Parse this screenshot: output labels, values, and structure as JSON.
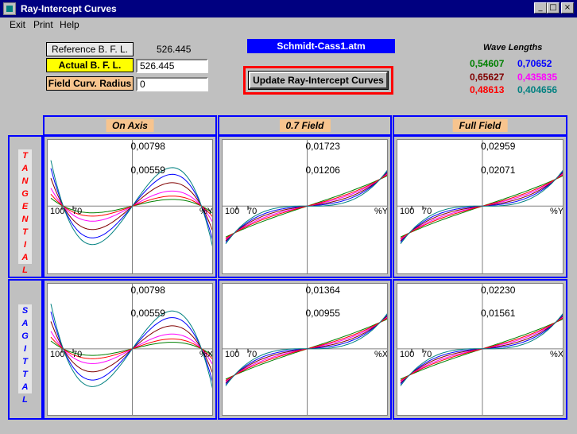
{
  "window": {
    "title": "Ray-Intercept Curves"
  },
  "menu": [
    "Exit",
    "Print",
    "Help"
  ],
  "controls": {
    "reference_bfl_label": "Reference  B. F. L.",
    "reference_bfl_value": "526.445",
    "actual_bfl_label": "Actual  B. F. L.",
    "actual_bfl_value": "526.445",
    "field_curv_label": "Field Curv. Radius",
    "field_curv_value": "0",
    "file_name": "Schmidt-Cass1.atm",
    "update_button": "Update  Ray-Intercept Curves"
  },
  "wavelengths": {
    "title": "Wave Lengths",
    "items": [
      {
        "value": "0,54607",
        "color": "#008000"
      },
      {
        "value": "0,70652",
        "color": "#0000ff"
      },
      {
        "value": "0,65627",
        "color": "#800000"
      },
      {
        "value": "0,435835",
        "color": "#ff00ff"
      },
      {
        "value": "0,48613",
        "color": "#ff0000"
      },
      {
        "value": "0,404656",
        "color": "#008080"
      }
    ]
  },
  "columns": [
    "On  Axis",
    "0.7 Field",
    "Full Field"
  ],
  "rows": [
    {
      "label": "T A N G E N T I A L",
      "color": "#ff0000"
    },
    {
      "label": "S A G I T T A L",
      "color": "#0000ff"
    }
  ],
  "axis_labels": {
    "pupil_ticks": [
      "100",
      "70"
    ],
    "tangential_axis": "%Y",
    "sagittal_axis": "%X"
  },
  "chart_data": [
    {
      "type": "line",
      "row": "tangential",
      "field": "On Axis",
      "scale_top": "0,00798",
      "scale_mid": "0,00559",
      "shape": "cubic-s",
      "amplitudes": [
        0.2,
        0.95,
        0.7,
        0.45,
        0.3,
        1.15
      ]
    },
    {
      "type": "line",
      "row": "tangential",
      "field": "0.7 Field",
      "scale_top": "0,01723",
      "scale_mid": "0,01206",
      "shape": "decline-s",
      "amplitudes": [
        0.15,
        1.1,
        0.85,
        0.6,
        0.4,
        1.4
      ]
    },
    {
      "type": "line",
      "row": "tangential",
      "field": "Full Field",
      "scale_top": "0,02959",
      "scale_mid": "0,02071",
      "shape": "decline-s",
      "amplitudes": [
        0.15,
        1.1,
        0.85,
        0.6,
        0.4,
        1.4
      ]
    },
    {
      "type": "line",
      "row": "sagittal",
      "field": "On Axis",
      "scale_top": "0,00798",
      "scale_mid": "0,00559",
      "shape": "cubic-s",
      "amplitudes": [
        0.2,
        0.95,
        0.7,
        0.45,
        0.3,
        1.15
      ]
    },
    {
      "type": "line",
      "row": "sagittal",
      "field": "0.7 Field",
      "scale_top": "0,01364",
      "scale_mid": "0,00955",
      "shape": "decline-s",
      "amplitudes": [
        0.15,
        1.1,
        0.85,
        0.6,
        0.4,
        1.4
      ]
    },
    {
      "type": "line",
      "row": "sagittal",
      "field": "Full Field",
      "scale_top": "0,02230",
      "scale_mid": "0,01561",
      "shape": "decline-s",
      "amplitudes": [
        0.15,
        1.1,
        0.85,
        0.6,
        0.4,
        1.4
      ]
    }
  ]
}
